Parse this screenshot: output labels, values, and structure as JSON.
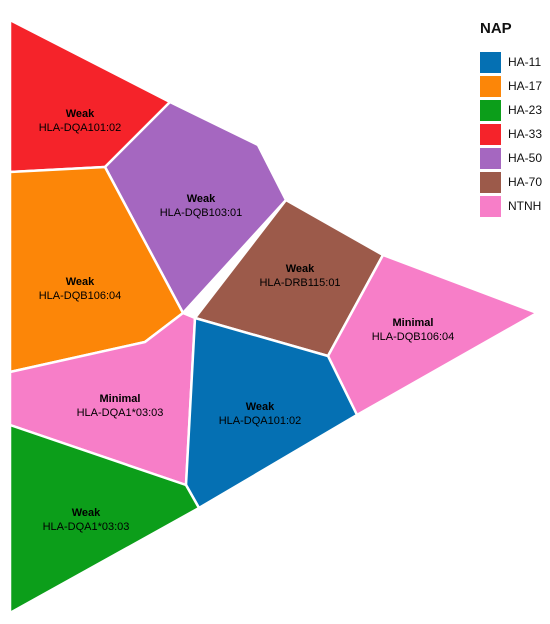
{
  "legend": {
    "title": "NAP",
    "items": [
      {
        "name": "HA-11",
        "color": "#0570B3"
      },
      {
        "name": "HA-17",
        "color": "#FC8608"
      },
      {
        "name": "HA-23",
        "color": "#0C9E1A"
      },
      {
        "name": "HA-33",
        "color": "#F5232A"
      },
      {
        "name": "HA-50",
        "color": "#A567C0"
      },
      {
        "name": "HA-70",
        "color": "#9C5A4A"
      },
      {
        "name": "NTNH",
        "color": "#F77EC8"
      }
    ]
  },
  "cells": [
    {
      "group": "HA-33",
      "strength": "Weak",
      "allele": "HLA-DQA101:02"
    },
    {
      "group": "HA-50",
      "strength": "Weak",
      "allele": "HLA-DQB103:01"
    },
    {
      "group": "HA-17",
      "strength": "Weak",
      "allele": "HLA-DQB106:04"
    },
    {
      "group": "HA-70",
      "strength": "Weak",
      "allele": "HLA-DRB115:01"
    },
    {
      "group": "NTNH",
      "strength": "Minimal",
      "allele": "HLA-DQB106:04"
    },
    {
      "group": "NTNH",
      "strength": "Minimal",
      "allele": "HLA-DQA1*03:03"
    },
    {
      "group": "HA-11",
      "strength": "Weak",
      "allele": "HLA-DQA101:02"
    },
    {
      "group": "HA-23",
      "strength": "Weak",
      "allele": "HLA-DQA1*03:03"
    }
  ]
}
